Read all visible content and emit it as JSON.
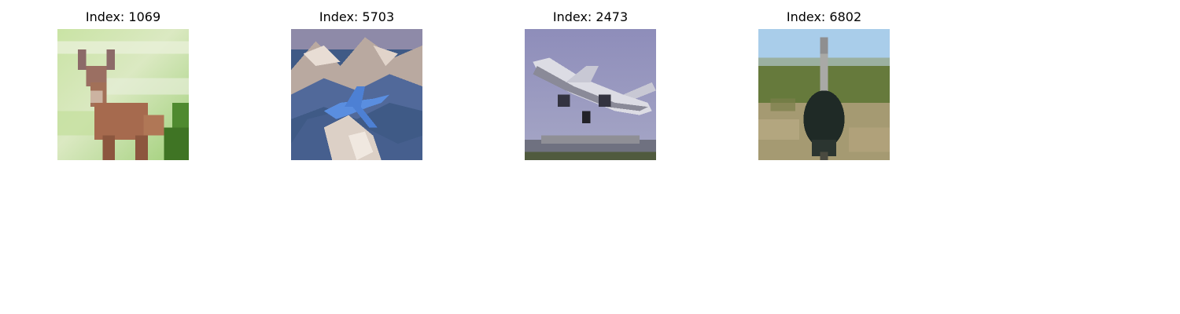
{
  "panels": [
    {
      "title": "Index: 1069",
      "subject": "deer"
    },
    {
      "title": "Index: 5703",
      "subject": "airplane over mountains"
    },
    {
      "title": "Index: 2473",
      "subject": "airplane taking off"
    },
    {
      "title": "Index: 6802",
      "subject": "ostrich"
    }
  ]
}
